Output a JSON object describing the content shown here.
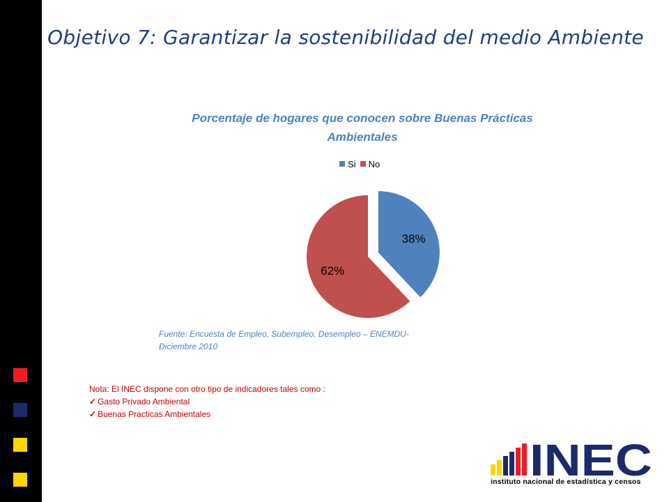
{
  "slide": {
    "title": "Objetivo 7: Garantizar la sostenibilidad del medio Ambiente",
    "source_text": "Fuente: Encuesta de Empleo, Subempleo, Desempleo – ENEMDU- Diciembre 2010",
    "note": {
      "intro": "Nota: El INEC dispone con otro tipo de indicadores tales como :",
      "items": [
        "Gasto Privado Ambiental",
        "Buenas Practicas Ambientales"
      ]
    },
    "logo": {
      "name": "INEC",
      "subtitle": "instituto nacional de estadística y censos"
    },
    "sidebar_colors": [
      "#ee1c25",
      "#1b2a6b",
      "#ffd500",
      "#ffd500"
    ]
  },
  "chart_data": {
    "type": "pie",
    "title": "Porcentaje de hogares que conocen sobre Buenas Prácticas Ambientales",
    "categories": [
      "Si",
      "No"
    ],
    "values": [
      38,
      62
    ],
    "labels": [
      "38%",
      "62%"
    ],
    "colors": [
      "#4f81bd",
      "#c0504d"
    ],
    "exploded": [
      "Si"
    ],
    "legend_position": "top"
  }
}
